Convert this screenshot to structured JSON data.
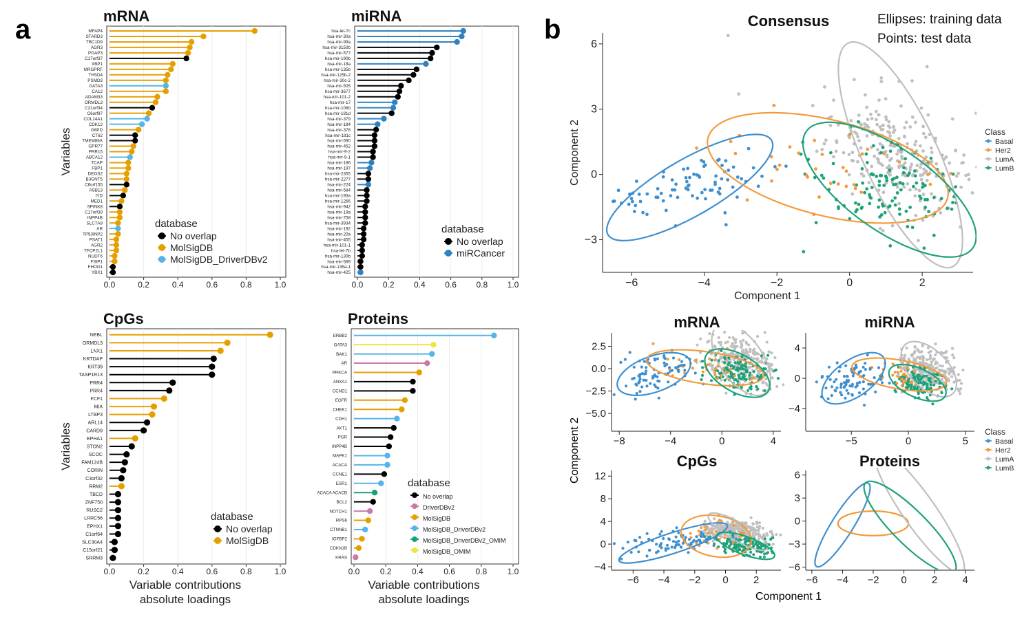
{
  "panel_labels": [
    "a",
    "b"
  ],
  "colors": {
    "no_overlap": "#000000",
    "molsigdb": "#E69F00",
    "molsigdb_driverdbv2": "#56B4E9",
    "mircancer": "#2F82C0",
    "driverdbv2": "#CC79A7",
    "molsigdb_driverdbv2_omim": "#1B9E77",
    "molsigdb_omim": "#F0E442",
    "basal": "#3E8FCF",
    "her2": "#F39A3C",
    "luma": "#BFBFBF",
    "lumb": "#1FA27A"
  },
  "chart_data": [
    {
      "id": "mrna_loadings",
      "type": "lollipop",
      "title": "mRNA",
      "ylabel": "Variables",
      "xlim": [
        0,
        1.0
      ],
      "xticks": [
        "0.0",
        "0.2",
        "0.4",
        "0.6",
        "0.8",
        "1.0"
      ],
      "legend": {
        "title": "database",
        "entries": [
          "No overlap",
          "MolSigDB",
          "MolSigDB_DriverDBv2"
        ]
      },
      "categories": [
        "MFAP4",
        "STARD3",
        "TBC1D9",
        "AGR3",
        "PGAP3",
        "C17orf37",
        "XBP1",
        "MRGPRF",
        "THSD4",
        "PSMD3",
        "GATA3",
        "CA12",
        "ADAM33",
        "ORMDL3",
        "C21orf34",
        "C6orf97",
        "COL14A1",
        "CDK12",
        "G6PD",
        "CT62",
        "TMEM86A",
        "GPR77",
        "PRR15",
        "ABCA12",
        "TCAP",
        "FBP1",
        "DEGS2",
        "B3GNT5",
        "C6orf155",
        "ASB13",
        "IYD",
        "MED1",
        "SPINK8",
        "C17orf39",
        "INPP4B",
        "SLC7A8",
        "AR",
        "TP53INP2",
        "PSAT1",
        "AGR2",
        "TFCP2L1",
        "NUDT6",
        "FSIP1",
        "FHOD1",
        "YBX1"
      ],
      "values": [
        0.85,
        0.55,
        0.48,
        0.47,
        0.46,
        0.45,
        0.37,
        0.36,
        0.34,
        0.33,
        0.33,
        0.33,
        0.28,
        0.27,
        0.25,
        0.23,
        0.22,
        0.19,
        0.17,
        0.15,
        0.15,
        0.14,
        0.13,
        0.12,
        0.11,
        0.11,
        0.1,
        0.1,
        0.1,
        0.09,
        0.08,
        0.07,
        0.06,
        0.06,
        0.06,
        0.05,
        0.05,
        0.05,
        0.04,
        0.04,
        0.04,
        0.03,
        0.03,
        0.02,
        0.02
      ],
      "groups": [
        "molsigdb",
        "molsigdb",
        "molsigdb",
        "molsigdb",
        "molsigdb",
        "no_overlap",
        "molsigdb",
        "molsigdb",
        "molsigdb",
        "molsigdb",
        "molsigdb_driverdbv2",
        "molsigdb",
        "molsigdb",
        "molsigdb",
        "no_overlap",
        "molsigdb",
        "molsigdb_driverdbv2",
        "molsigdb_driverdbv2",
        "molsigdb",
        "no_overlap",
        "no_overlap",
        "molsigdb",
        "molsigdb",
        "molsigdb_driverdbv2",
        "molsigdb",
        "molsigdb",
        "molsigdb",
        "molsigdb",
        "no_overlap",
        "molsigdb",
        "no_overlap",
        "molsigdb",
        "no_overlap",
        "molsigdb",
        "molsigdb",
        "molsigdb",
        "molsigdb_driverdbv2",
        "molsigdb",
        "molsigdb",
        "molsigdb",
        "molsigdb",
        "molsigdb",
        "molsigdb",
        "no_overlap",
        "no_overlap"
      ]
    },
    {
      "id": "mirna_loadings",
      "type": "lollipop",
      "title": "miRNA",
      "xlim": [
        0,
        1.0
      ],
      "xticks": [
        "0.0",
        "0.2",
        "0.4",
        "0.6",
        "0.8",
        "1.0"
      ],
      "legend": {
        "title": "database",
        "entries": [
          "No overlap",
          "miRCancer"
        ]
      },
      "categories": [
        "hsa-let-7c",
        "hsa-mir-30a",
        "hsa-mir-99a",
        "hsa-mir-3150b",
        "hsa-mir-577",
        "hsa-mir-190b",
        "hsa-mir-18a",
        "hsa-mir-135b",
        "hsa-mir-125b-2",
        "hsa-mir-30c-2",
        "hsa-mir-505",
        "hsa-mir-3677",
        "hsa-mir-101-2",
        "hsa-mir-17",
        "hsa-mir-106b",
        "hsa-mir-181d",
        "hsa-mir-379",
        "hsa-mir-184",
        "hsa-mir-378",
        "hsa-mir-181c",
        "hsa-mir-590",
        "hsa-mir-452",
        "hsa-mir-9-2",
        "hsa-mir-9-1",
        "hsa-mir-186",
        "hsa-mir-197",
        "hsa-mir-2355",
        "hsa-mir-2277",
        "hsa-mir-224",
        "hsa-mir-584",
        "hsa-mir-193a",
        "hsa-mir-1266",
        "hsa-mir-942",
        "hsa-mir-19a",
        "hsa-mir-758",
        "hsa-mir-3934",
        "hsa-mir-192",
        "hsa-mir-20a",
        "hsa-mir-455",
        "hsa-mir-101-1",
        "hsa-let-7b",
        "hsa-mir-130b",
        "hsa-mir-589",
        "hsa-mir-135a-1",
        "hsa-mir-425"
      ],
      "values": [
        0.68,
        0.67,
        0.64,
        0.51,
        0.48,
        0.47,
        0.44,
        0.38,
        0.36,
        0.33,
        0.28,
        0.27,
        0.26,
        0.24,
        0.23,
        0.22,
        0.17,
        0.13,
        0.12,
        0.11,
        0.11,
        0.11,
        0.1,
        0.1,
        0.09,
        0.08,
        0.07,
        0.07,
        0.07,
        0.06,
        0.06,
        0.06,
        0.05,
        0.05,
        0.05,
        0.05,
        0.04,
        0.04,
        0.04,
        0.03,
        0.03,
        0.03,
        0.02,
        0.02,
        0.02
      ],
      "groups": [
        "mircancer",
        "mircancer",
        "mircancer",
        "no_overlap",
        "no_overlap",
        "no_overlap",
        "mircancer",
        "no_overlap",
        "no_overlap",
        "no_overlap",
        "no_overlap",
        "no_overlap",
        "no_overlap",
        "mircancer",
        "mircancer",
        "no_overlap",
        "mircancer",
        "mircancer",
        "no_overlap",
        "no_overlap",
        "no_overlap",
        "no_overlap",
        "no_overlap",
        "no_overlap",
        "mircancer",
        "mircancer",
        "no_overlap",
        "no_overlap",
        "mircancer",
        "no_overlap",
        "no_overlap",
        "no_overlap",
        "no_overlap",
        "no_overlap",
        "no_overlap",
        "no_overlap",
        "no_overlap",
        "no_overlap",
        "no_overlap",
        "no_overlap",
        "no_overlap",
        "no_overlap",
        "no_overlap",
        "no_overlap",
        "mircancer"
      ]
    },
    {
      "id": "cpg_loadings",
      "type": "lollipop",
      "title": "CpGs",
      "ylabel": "Variables",
      "xlabel": "Variable contributions",
      "xlabel2": "absolute loadings",
      "xlim": [
        0,
        1.0
      ],
      "xticks": [
        "0.0",
        "0.2",
        "0.4",
        "0.6",
        "0.8",
        "1.0"
      ],
      "legend": {
        "title": "database",
        "entries": [
          "No overlap",
          "MolSigDB"
        ]
      },
      "categories": [
        "NEBL",
        "ORMDL3",
        "LNX1",
        "KRTDAP",
        "KRT39",
        "TASP1R13",
        "PRR4",
        "PRR4",
        "FCF1",
        "MIA",
        "LTBP3",
        "ARL14",
        "CARD9",
        "EPHA1",
        "STON2",
        "SCOC",
        "FAM124B",
        "CORIN",
        "C3orf32",
        "RRM2",
        "TBCD",
        "ZNF750",
        "RUSC2",
        "LRRC56",
        "EPHX1",
        "C1orf64",
        "SLC30A4",
        "C15orf21",
        "SRRM3"
      ],
      "values": [
        0.94,
        0.69,
        0.65,
        0.61,
        0.6,
        0.6,
        0.37,
        0.35,
        0.32,
        0.26,
        0.25,
        0.22,
        0.2,
        0.15,
        0.13,
        0.1,
        0.09,
        0.08,
        0.07,
        0.07,
        0.05,
        0.05,
        0.05,
        0.05,
        0.05,
        0.05,
        0.03,
        0.03,
        0.02
      ],
      "groups": [
        "molsigdb",
        "molsigdb",
        "molsigdb",
        "no_overlap",
        "no_overlap",
        "no_overlap",
        "no_overlap",
        "no_overlap",
        "molsigdb",
        "molsigdb",
        "molsigdb",
        "no_overlap",
        "no_overlap",
        "molsigdb",
        "no_overlap",
        "no_overlap",
        "no_overlap",
        "no_overlap",
        "no_overlap",
        "molsigdb",
        "no_overlap",
        "no_overlap",
        "no_overlap",
        "no_overlap",
        "no_overlap",
        "no_overlap",
        "no_overlap",
        "no_overlap",
        "no_overlap"
      ]
    },
    {
      "id": "protein_loadings",
      "type": "lollipop",
      "title": "Proteins",
      "xlabel": "Variable contributions",
      "xlabel2": "absolute loadings",
      "xlim": [
        0,
        1.0
      ],
      "xticks": [
        "0.0",
        "0.2",
        "0.4",
        "0.6",
        "0.8",
        "1.0"
      ],
      "legend": {
        "title": "database",
        "entries": [
          "No overlap",
          "DriverDBv2",
          "MolSigDB",
          "MolSigDB_DriverDBv2",
          "MolSigDB_DriverDBv2_OMIM",
          "MolSigDB_OMIM"
        ]
      },
      "categories": [
        "ERBB2",
        "GATA3",
        "BAK1",
        "AR",
        "PRKCA",
        "ANXA1",
        "CCND1",
        "EGFR",
        "CHEK1",
        "CDH1",
        "AKT1",
        "PGR",
        "INPP4B",
        "MAPK1",
        "ACACA",
        "CCNE1",
        "ESR1",
        "ACACA ACACB",
        "BCL2",
        "NOTCH1",
        "RPS6",
        "CTNNB1",
        "IGFBP2",
        "CDKN1B",
        "KRAS"
      ],
      "values": [
        0.88,
        0.5,
        0.49,
        0.46,
        0.41,
        0.37,
        0.37,
        0.32,
        0.3,
        0.27,
        0.25,
        0.23,
        0.22,
        0.21,
        0.21,
        0.19,
        0.17,
        0.13,
        0.12,
        0.1,
        0.09,
        0.07,
        0.05,
        0.03,
        0.01
      ],
      "groups": [
        "molsigdb_driverdbv2",
        "molsigdb_omim",
        "molsigdb_driverdbv2",
        "driverdbv2",
        "molsigdb",
        "no_overlap",
        "no_overlap",
        "molsigdb",
        "molsigdb",
        "molsigdb_driverdbv2",
        "no_overlap",
        "no_overlap",
        "no_overlap",
        "molsigdb_driverdbv2",
        "molsigdb_driverdbv2",
        "no_overlap",
        "molsigdb_driverdbv2",
        "molsigdb_driverdbv2_omim",
        "no_overlap",
        "driverdbv2",
        "molsigdb",
        "molsigdb_driverdbv2",
        "molsigdb",
        "molsigdb",
        "driverdbv2"
      ]
    },
    {
      "id": "consensus_scatter",
      "type": "scatter",
      "title": "Consensus",
      "xlabel": "Component 1",
      "ylabel": "Component 2",
      "xlim": [
        -6.8,
        3.4
      ],
      "ylim": [
        -4.5,
        6.5
      ],
      "xticks": [
        -6,
        -4,
        -2,
        0,
        2
      ],
      "yticks": [
        -3,
        0,
        3,
        6
      ],
      "annotations": [
        "Ellipses: training data",
        "Points: test data"
      ],
      "legend": {
        "title": "Class",
        "entries": [
          "Basal",
          "Her2",
          "LumA",
          "LumB"
        ]
      },
      "ellipses": [
        {
          "cls": "basal",
          "cx": -4.4,
          "cy": -0.6,
          "rx": 2.6,
          "ry": 1.3,
          "angle": 30
        },
        {
          "cls": "her2",
          "cx": -0.6,
          "cy": 0.3,
          "rx": 3.4,
          "ry": 2.2,
          "angle": -14
        },
        {
          "cls": "luma",
          "cx": 1.4,
          "cy": 0.9,
          "rx": 3.4,
          "ry": 1.7,
          "angle": -65
        },
        {
          "cls": "lumb",
          "cx": 1.1,
          "cy": -0.7,
          "rx": 2.8,
          "ry": 1.9,
          "angle": -35
        }
      ]
    },
    {
      "id": "mrna_scatter",
      "type": "scatter",
      "title": "mRNA",
      "xlim": [
        -8.6,
        4.6
      ],
      "ylim": [
        -7.0,
        4.0
      ],
      "xticks": [
        -8,
        -4,
        0,
        4
      ],
      "yticks": [
        "2.5",
        "0.0",
        "-2.5",
        "-5.0"
      ],
      "ellipses": [
        {
          "cls": "basal",
          "cx": -5.3,
          "cy": -0.6,
          "rx": 3.0,
          "ry": 2.0,
          "angle": 20
        },
        {
          "cls": "her2",
          "cx": -1.3,
          "cy": 0.1,
          "rx": 4.6,
          "ry": 1.8,
          "angle": -8
        },
        {
          "cls": "luma",
          "cx": 1.5,
          "cy": 1.0,
          "rx": 3.2,
          "ry": 2.4,
          "angle": -55
        },
        {
          "cls": "lumb",
          "cx": 1.2,
          "cy": -0.5,
          "rx": 2.8,
          "ry": 2.1,
          "angle": -30
        }
      ]
    },
    {
      "id": "mirna_scatter",
      "type": "scatter",
      "title": "miRNA",
      "xlim": [
        -9.0,
        5.8
      ],
      "ylim": [
        -7.0,
        6.0
      ],
      "xticks": [
        -5,
        0,
        5
      ],
      "yticks": [
        -4,
        0,
        4
      ],
      "ellipses": [
        {
          "cls": "basal",
          "cx": -4.8,
          "cy": 0.0,
          "rx": 3.2,
          "ry": 2.4,
          "angle": 35
        },
        {
          "cls": "her2",
          "cx": -0.8,
          "cy": 0.5,
          "rx": 4.2,
          "ry": 1.9,
          "angle": -10
        },
        {
          "cls": "luma",
          "cx": 1.8,
          "cy": 1.2,
          "rx": 3.0,
          "ry": 2.5,
          "angle": -45
        },
        {
          "cls": "lumb",
          "cx": 0.8,
          "cy": -0.6,
          "rx": 2.7,
          "ry": 1.9,
          "angle": -25
        }
      ]
    },
    {
      "id": "cpg_scatter",
      "type": "scatter",
      "title": "CpGs",
      "xlim": [
        -7.4,
        3.6
      ],
      "ylim": [
        -4.6,
        13.0
      ],
      "xticks": [
        -6,
        -4,
        -2,
        0,
        2
      ],
      "yticks": [
        12,
        8,
        4,
        0,
        -4
      ],
      "ellipses": [
        {
          "cls": "basal",
          "cx": -3.4,
          "cy": 0.2,
          "rx": 3.7,
          "ry": 1.8,
          "angle": 18
        },
        {
          "cls": "her2",
          "cx": -0.6,
          "cy": 1.4,
          "rx": 2.3,
          "ry": 3.6,
          "angle": -10
        },
        {
          "cls": "luma",
          "cx": 0.8,
          "cy": 2.2,
          "rx": 2.2,
          "ry": 1.6,
          "angle": -30
        },
        {
          "cls": "lumb",
          "cx": 1.3,
          "cy": -0.3,
          "rx": 2.0,
          "ry": 1.6,
          "angle": -20
        }
      ]
    },
    {
      "id": "protein_scatter",
      "type": "scatter",
      "title": "Proteins",
      "xlim": [
        -6.4,
        4.6
      ],
      "ylim": [
        -6.4,
        6.6
      ],
      "xticks": [
        -6,
        -4,
        -2,
        0,
        2,
        4
      ],
      "yticks": [
        6,
        3,
        0,
        -3,
        -6
      ],
      "legend": {
        "title": "Class",
        "entries": [
          "Basal",
          "Her2",
          "LumA",
          "LumB"
        ]
      },
      "ellipses": [
        {
          "cls": "basal",
          "cx": -4.0,
          "cy": -0.5,
          "rx": 3.2,
          "ry": 1.4,
          "angle": 58
        },
        {
          "cls": "her2",
          "cx": -2.0,
          "cy": -0.3,
          "rx": 2.3,
          "ry": 1.6,
          "angle": 0
        },
        {
          "cls": "luma",
          "cx": 1.0,
          "cy": 1.3,
          "rx": 4.9,
          "ry": 2.1,
          "angle": -55
        },
        {
          "cls": "lumb",
          "cx": 0.4,
          "cy": -0.8,
          "rx": 4.1,
          "ry": 2.2,
          "angle": -45
        }
      ]
    }
  ],
  "shared": {
    "scatter_ylabel": "Component 2",
    "scatter_xlabel": "Component 1"
  }
}
